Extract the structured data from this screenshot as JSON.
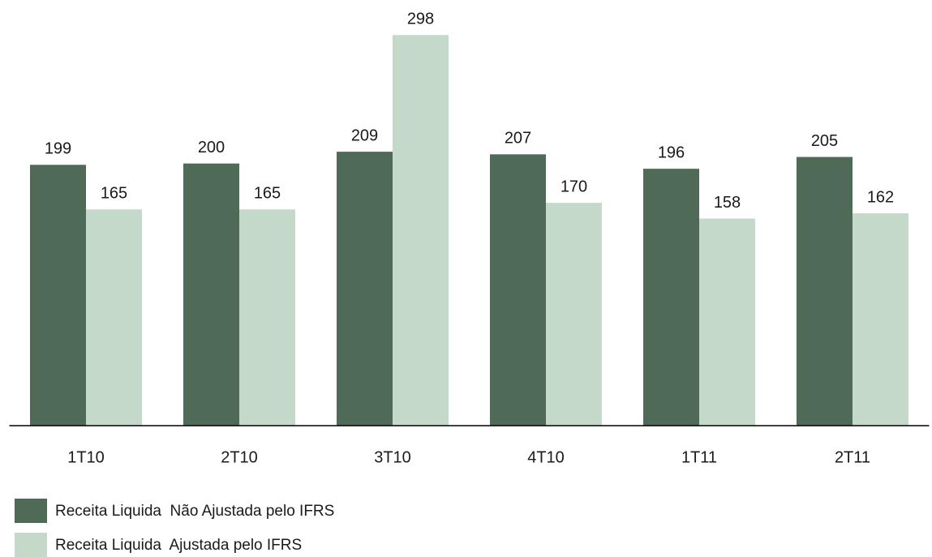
{
  "chart_data": {
    "type": "bar",
    "categories": [
      "1T10",
      "2T10",
      "3T10",
      "4T10",
      "1T11",
      "2T11"
    ],
    "series": [
      {
        "name": "Receita Liquida  Não Ajustada pelo IFRS",
        "color": "#4f6b58",
        "values": [
          199,
          200,
          209,
          207,
          196,
          205
        ]
      },
      {
        "name": "Receita Liquida  Ajustada pelo IFRS",
        "color": "#c5d9cb",
        "values": [
          165,
          165,
          298,
          170,
          158,
          162
        ]
      }
    ],
    "ylim": [
      0,
      300
    ]
  }
}
